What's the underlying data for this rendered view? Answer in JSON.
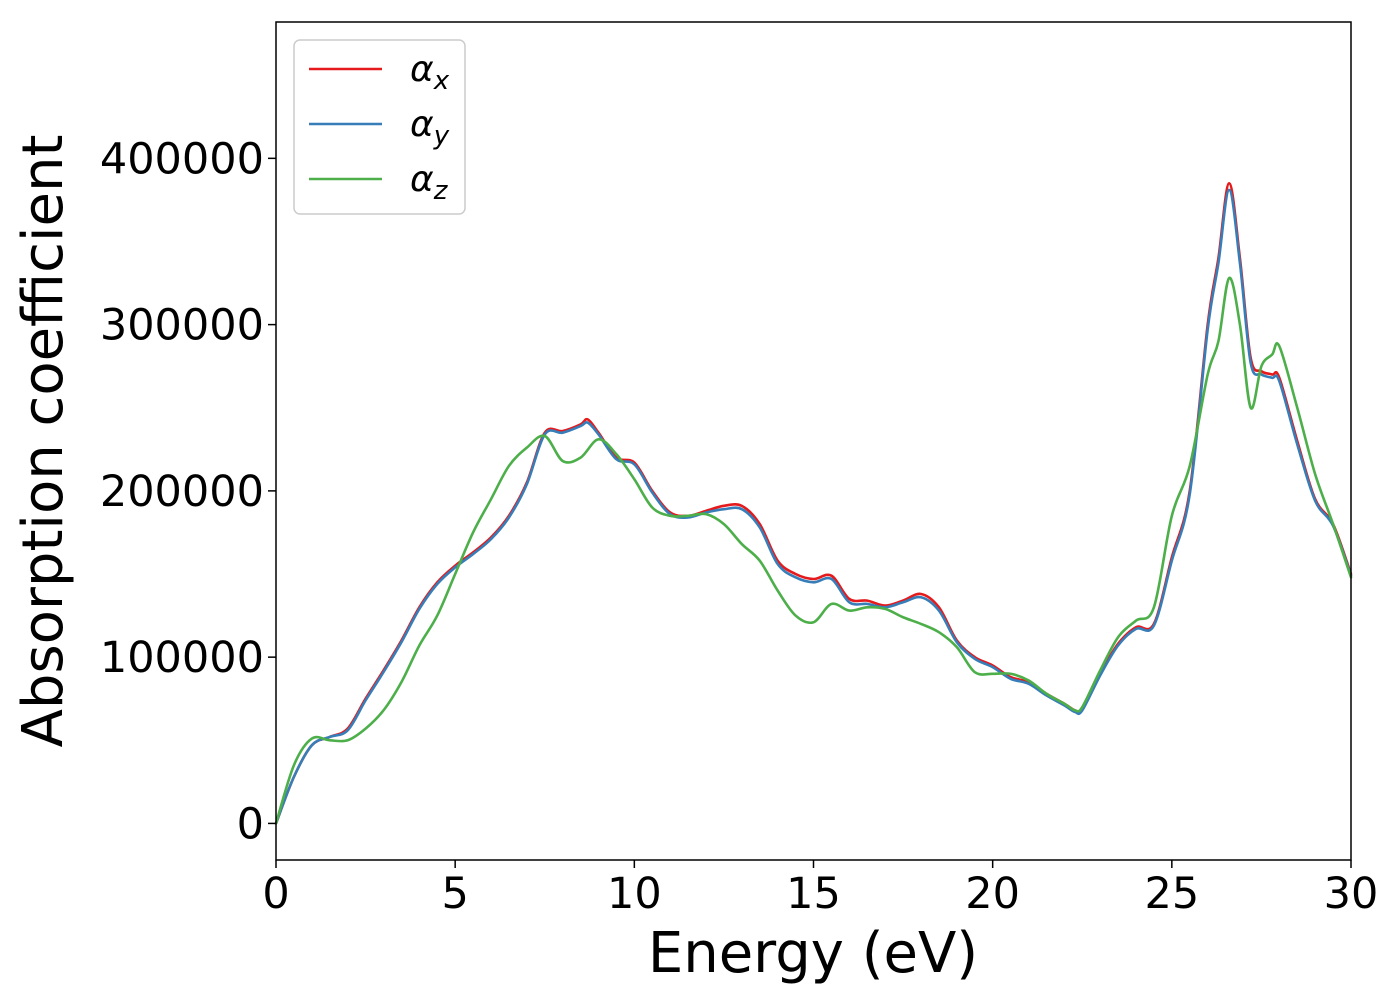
{
  "chart_data": {
    "type": "line",
    "title": "",
    "xlabel": "Energy (eV)",
    "ylabel": "Absorption coefficient",
    "xlim": [
      0,
      30
    ],
    "ylim": [
      -22000,
      482000
    ],
    "xticks": [
      0,
      5,
      10,
      15,
      20,
      25,
      30
    ],
    "yticks": [
      0,
      100000,
      200000,
      300000,
      400000
    ],
    "xtick_labels": [
      "0",
      "5",
      "10",
      "15",
      "20",
      "25",
      "30"
    ],
    "ytick_labels": [
      "0",
      "100000",
      "200000",
      "300000",
      "400000"
    ],
    "grid": false,
    "legend_position": "top-left",
    "series": [
      {
        "name": "αx",
        "base": "α",
        "sub": "x",
        "color": "#e41a1c",
        "x": [
          0,
          0.5,
          1,
          1.5,
          2,
          2.5,
          3,
          3.5,
          4,
          4.5,
          5,
          5.5,
          6,
          6.5,
          7,
          7.5,
          8,
          8.5,
          8.7,
          9,
          9.5,
          10,
          10.5,
          11,
          11.5,
          12,
          12.5,
          13,
          13.5,
          14,
          14.5,
          15,
          15.5,
          16,
          16.5,
          17,
          17.5,
          18,
          18.5,
          19,
          19.5,
          20,
          20.5,
          21,
          21.5,
          22,
          22.3,
          22.5,
          23,
          23.5,
          24,
          24.5,
          25,
          25.5,
          26,
          26.3,
          26.6,
          26.9,
          27.2,
          27.5,
          27.8,
          28,
          28.5,
          29,
          29.5,
          30
        ],
        "y": [
          0,
          28000,
          47000,
          52000,
          57000,
          75000,
          92000,
          110000,
          130000,
          145000,
          155000,
          163000,
          172000,
          185000,
          205000,
          235000,
          236000,
          240000,
          243000,
          235000,
          220000,
          217000,
          200000,
          187000,
          185000,
          188000,
          191000,
          191000,
          180000,
          158000,
          150000,
          147000,
          149000,
          135000,
          134000,
          131000,
          134000,
          138000,
          130000,
          110000,
          100000,
          95000,
          88000,
          85000,
          78000,
          72000,
          68000,
          69000,
          90000,
          108000,
          118000,
          120000,
          160000,
          200000,
          300000,
          340000,
          385000,
          340000,
          280000,
          272000,
          270000,
          268000,
          230000,
          195000,
          180000,
          150000
        ]
      },
      {
        "name": "αy",
        "base": "α",
        "sub": "y",
        "color": "#377eb8",
        "x": [
          0,
          0.5,
          1,
          1.5,
          2,
          2.5,
          3,
          3.5,
          4,
          4.5,
          5,
          5.5,
          6,
          6.5,
          7,
          7.5,
          8,
          8.5,
          8.7,
          9,
          9.5,
          10,
          10.5,
          11,
          11.5,
          12,
          12.5,
          13,
          13.5,
          14,
          14.5,
          15,
          15.5,
          16,
          16.5,
          17,
          17.5,
          18,
          18.5,
          19,
          19.5,
          20,
          20.5,
          21,
          21.5,
          22,
          22.3,
          22.5,
          23,
          23.5,
          24,
          24.5,
          25,
          25.5,
          26,
          26.3,
          26.6,
          26.9,
          27.2,
          27.5,
          27.8,
          28,
          28.5,
          29,
          29.5,
          30
        ],
        "y": [
          0,
          28000,
          47000,
          52000,
          56000,
          74000,
          91000,
          109000,
          129000,
          144000,
          154000,
          162000,
          171000,
          184000,
          204000,
          234000,
          235000,
          239000,
          241000,
          234000,
          219000,
          216000,
          199000,
          186000,
          184000,
          187000,
          189000,
          189000,
          178000,
          156000,
          148000,
          145000,
          147000,
          133000,
          132000,
          130000,
          133000,
          136000,
          128000,
          109000,
          99000,
          94000,
          87000,
          84000,
          77000,
          71000,
          67000,
          68000,
          89000,
          107000,
          117000,
          119000,
          158000,
          198000,
          297000,
          337000,
          381000,
          337000,
          277000,
          270000,
          268000,
          266000,
          228000,
          194000,
          179000,
          149000
        ]
      },
      {
        "name": "αz",
        "base": "α",
        "sub": "z",
        "color": "#4daf4a",
        "x": [
          0,
          0.5,
          1,
          1.5,
          2,
          2.5,
          3,
          3.5,
          4,
          4.5,
          5,
          5.5,
          6,
          6.5,
          7,
          7.5,
          8,
          8.5,
          9,
          9.5,
          10,
          10.5,
          11,
          11.5,
          12,
          12.5,
          13,
          13.5,
          14,
          14.5,
          15,
          15.5,
          16,
          16.5,
          17,
          17.5,
          18,
          18.5,
          19,
          19.5,
          20,
          20.5,
          21,
          21.5,
          22,
          22.3,
          22.5,
          23,
          23.5,
          24,
          24.5,
          25,
          25.5,
          26,
          26.3,
          26.6,
          26.9,
          27.2,
          27.5,
          27.8,
          28,
          28.5,
          29,
          29.5,
          30
        ],
        "y": [
          0,
          35000,
          51000,
          50000,
          50000,
          57000,
          68000,
          85000,
          107000,
          125000,
          150000,
          175000,
          195000,
          215000,
          226000,
          233000,
          218000,
          220000,
          231000,
          222000,
          207000,
          190000,
          185000,
          185000,
          186000,
          180000,
          168000,
          158000,
          140000,
          125000,
          121000,
          132000,
          128000,
          130000,
          129000,
          124000,
          120000,
          115000,
          106000,
          91000,
          90000,
          90000,
          86000,
          78000,
          72000,
          68000,
          70000,
          92000,
          112000,
          122000,
          130000,
          185000,
          215000,
          270000,
          290000,
          328000,
          300000,
          250000,
          275000,
          282000,
          287000,
          250000,
          210000,
          180000,
          148000
        ]
      }
    ]
  }
}
